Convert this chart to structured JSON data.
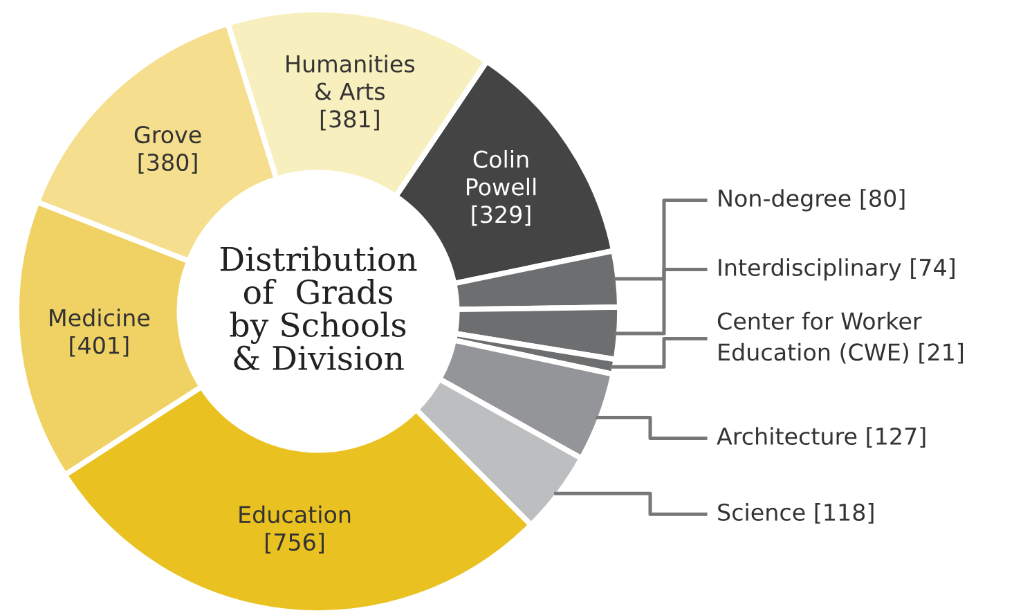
{
  "chart_data": {
    "type": "donut",
    "title": "Distribution\nof  Grads\nby Schools\n& Division",
    "categories": [
      "Colin Powell",
      "Non-degree",
      "Interdisciplinary",
      "Center for Worker Education (CWE)",
      "Architecture",
      "Science",
      "Education",
      "Medicine",
      "Grove",
      "Humanities & Arts"
    ],
    "values": [
      329,
      80,
      74,
      21,
      127,
      118,
      756,
      401,
      380,
      381
    ],
    "value_labels": [
      "[329]",
      "[80]",
      "[74]",
      "[21]",
      "[127]",
      "[118]",
      "[756]",
      "[401]",
      "[380]",
      "[381]"
    ],
    "colors": [
      "#444445",
      "#6d6e70",
      "#6d6e70",
      "#6d6e70",
      "#939598",
      "#bcbec0",
      "#e9c222",
      "#f0d264",
      "#f5de8d",
      "#f8efbf"
    ],
    "legend": false
  }
}
